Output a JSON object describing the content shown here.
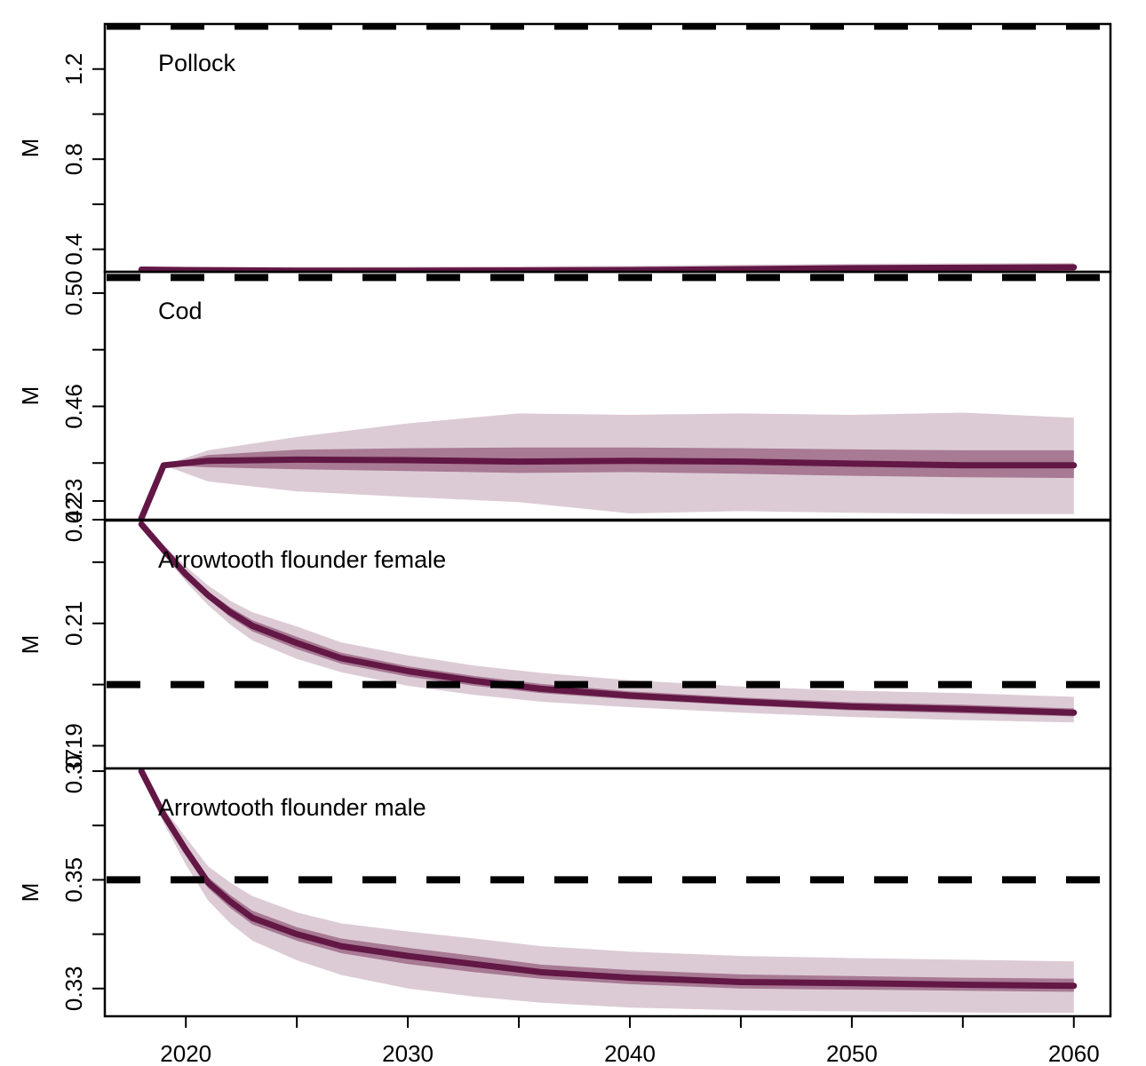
{
  "chart_data": [
    {
      "type": "line",
      "panel_label": "Pollock",
      "ylabel": "M",
      "ylim": [
        0.3,
        1.4
      ],
      "yticks": [
        0.4,
        0.8,
        1.2
      ],
      "ytick_labels": [
        "0.4",
        "0.8",
        "1.2"
      ],
      "yminor": [
        0.6,
        1.0
      ],
      "reference_line": 1.39,
      "x": [
        2018,
        2020,
        2025,
        2030,
        2035,
        2040,
        2045,
        2050,
        2055,
        2060
      ],
      "median": [
        0.31,
        0.308,
        0.305,
        0.305,
        0.306,
        0.308,
        0.312,
        0.316,
        0.318,
        0.32
      ],
      "inner_band": {
        "lower": [
          0.31,
          0.302,
          0.298,
          0.297,
          0.298,
          0.3,
          0.303,
          0.306,
          0.308,
          0.31
        ],
        "upper": [
          0.31,
          0.314,
          0.312,
          0.313,
          0.314,
          0.316,
          0.32,
          0.325,
          0.328,
          0.33
        ]
      },
      "outer_band": {
        "lower": [
          0.31,
          0.295,
          0.286,
          0.286,
          0.287,
          0.29,
          0.293,
          0.297,
          0.3,
          0.302
        ],
        "upper": [
          0.31,
          0.32,
          0.322,
          0.323,
          0.325,
          0.327,
          0.332,
          0.336,
          0.338,
          0.34
        ]
      }
    },
    {
      "type": "line",
      "panel_label": "Cod",
      "ylabel": "M",
      "ylim": [
        0.42,
        0.5075
      ],
      "yticks": [
        0.42,
        0.46,
        0.5
      ],
      "ytick_labels": [
        "0.42",
        "0.46",
        "0.50"
      ],
      "yminor": [
        0.44,
        0.48
      ],
      "reference_line": 0.5055,
      "x": [
        2018,
        2019,
        2021,
        2025,
        2030,
        2035,
        2040,
        2045,
        2050,
        2055,
        2060
      ],
      "median": [
        0.4205,
        0.4392,
        0.4408,
        0.4412,
        0.441,
        0.4405,
        0.4408,
        0.4405,
        0.4398,
        0.4392,
        0.4392
      ],
      "inner_band": {
        "lower": [
          0.4205,
          0.4392,
          0.4385,
          0.4378,
          0.4372,
          0.4365,
          0.4368,
          0.4362,
          0.4355,
          0.435,
          0.4347
        ],
        "upper": [
          0.4205,
          0.4392,
          0.4428,
          0.4447,
          0.4452,
          0.4455,
          0.4455,
          0.4452,
          0.4448,
          0.4445,
          0.4445
        ]
      },
      "outer_band": {
        "lower": [
          0.4205,
          0.4392,
          0.4335,
          0.43,
          0.428,
          0.4262,
          0.4222,
          0.423,
          0.4224,
          0.422,
          0.422
        ],
        "upper": [
          0.4205,
          0.4392,
          0.4445,
          0.4492,
          0.454,
          0.4575,
          0.457,
          0.4575,
          0.457,
          0.4578,
          0.456
        ]
      }
    },
    {
      "type": "line",
      "panel_label": "Arrowtooth flounder female",
      "ylabel": "M",
      "ylim": [
        0.1863,
        0.2268
      ],
      "yticks": [
        0.19,
        0.21,
        0.23
      ],
      "ytick_labels": [
        "0.19",
        "0.21",
        "0.23"
      ],
      "yminor": [
        0.2,
        0.22
      ],
      "reference_line": 0.2,
      "x": [
        2018,
        2019,
        2020,
        2021,
        2022,
        2023,
        2025,
        2027,
        2030,
        2033,
        2036,
        2040,
        2045,
        2050,
        2055,
        2060
      ],
      "median": [
        0.2262,
        0.222,
        0.218,
        0.2146,
        0.2118,
        0.2096,
        0.2068,
        0.2043,
        0.2022,
        0.2006,
        0.1993,
        0.1982,
        0.1972,
        0.1964,
        0.196,
        0.1954
      ],
      "inner_band": {
        "lower": [
          0.2262,
          0.2217,
          0.2175,
          0.214,
          0.211,
          0.2087,
          0.2058,
          0.2034,
          0.2013,
          0.1998,
          0.1986,
          0.1976,
          0.1966,
          0.1958,
          0.1953,
          0.1948
        ],
        "upper": [
          0.2262,
          0.2223,
          0.2185,
          0.2152,
          0.2126,
          0.2105,
          0.2078,
          0.2052,
          0.203,
          0.2014,
          0.2001,
          0.1989,
          0.1979,
          0.1971,
          0.1967,
          0.1961
        ]
      },
      "outer_band": {
        "lower": [
          0.2262,
          0.2212,
          0.2168,
          0.213,
          0.2098,
          0.2072,
          0.2042,
          0.202,
          0.1998,
          0.1983,
          0.1972,
          0.1963,
          0.1954,
          0.1947,
          0.1942,
          0.1938
        ],
        "upper": [
          0.2262,
          0.2228,
          0.2193,
          0.2162,
          0.2137,
          0.2118,
          0.2095,
          0.2069,
          0.2048,
          0.2031,
          0.2019,
          0.2007,
          0.1997,
          0.199,
          0.1986,
          0.198
        ]
      }
    },
    {
      "type": "line",
      "panel_label": "Arrowtooth flounder male",
      "ylabel": "M",
      "ylim": [
        0.3249,
        0.3705
      ],
      "yticks": [
        0.33,
        0.35,
        0.37
      ],
      "ytick_labels": [
        "0.33",
        "0.35",
        "0.37"
      ],
      "yminor": [
        0.34,
        0.36
      ],
      "reference_line": 0.35,
      "x": [
        2018,
        2019,
        2020,
        2021,
        2022,
        2023,
        2025,
        2027,
        2030,
        2033,
        2036,
        2040,
        2045,
        2050,
        2055,
        2060
      ],
      "median": [
        0.37,
        0.362,
        0.3555,
        0.3495,
        0.346,
        0.343,
        0.34,
        0.3378,
        0.336,
        0.3345,
        0.333,
        0.332,
        0.3312,
        0.331,
        0.3307,
        0.3305
      ],
      "inner_band": {
        "lower": [
          0.37,
          0.3615,
          0.3545,
          0.3485,
          0.3448,
          0.3418,
          0.3388,
          0.3365,
          0.3345,
          0.333,
          0.3318,
          0.3308,
          0.33,
          0.3298,
          0.3296,
          0.3294
        ],
        "upper": [
          0.37,
          0.3625,
          0.3565,
          0.3505,
          0.3472,
          0.3443,
          0.3413,
          0.3392,
          0.3375,
          0.336,
          0.3344,
          0.3334,
          0.3326,
          0.3323,
          0.332,
          0.3318
        ]
      },
      "outer_band": {
        "lower": [
          0.37,
          0.3605,
          0.3528,
          0.3462,
          0.342,
          0.3388,
          0.3352,
          0.3325,
          0.33,
          0.3285,
          0.3274,
          0.3265,
          0.326,
          0.3258,
          0.3256,
          0.3255
        ],
        "upper": [
          0.37,
          0.3632,
          0.3578,
          0.3525,
          0.3495,
          0.347,
          0.344,
          0.342,
          0.3405,
          0.3392,
          0.3378,
          0.3368,
          0.336,
          0.3356,
          0.3353,
          0.335
        ]
      }
    }
  ],
  "x_axis": {
    "ticks": [
      2020,
      2030,
      2040,
      2050,
      2060
    ],
    "tick_labels": [
      "2020",
      "2030",
      "2040",
      "2050",
      "2060"
    ],
    "xlim": [
      2016.35,
      2061.65
    ]
  },
  "colors": {
    "median_line": "#621745",
    "inner_band": "#a87a94",
    "outer_band": "#dccbd5",
    "reference_line": "#000000",
    "axes": "#000000"
  }
}
